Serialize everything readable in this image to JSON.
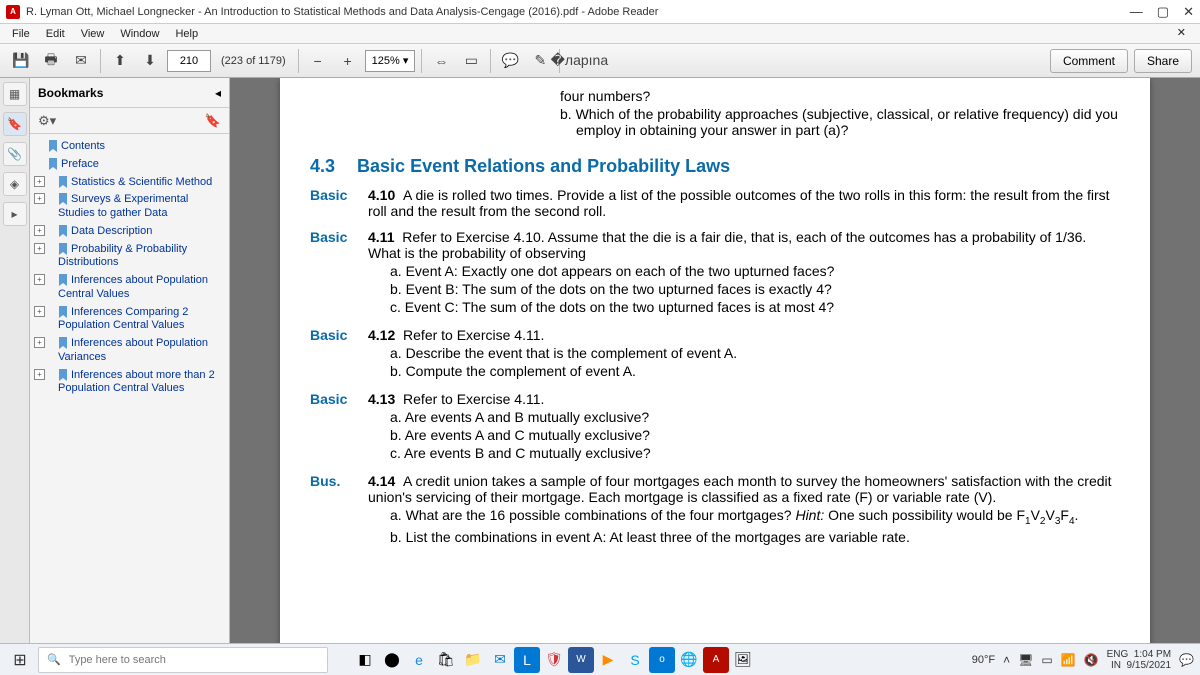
{
  "window": {
    "title": "R. Lyman Ott, Michael Longnecker - An Introduction to Statistical Methods and  Data Analysis-Cengage (2016).pdf - Adobe Reader"
  },
  "menu": {
    "file": "File",
    "edit": "Edit",
    "view": "View",
    "window": "Window",
    "help": "Help"
  },
  "toolbar": {
    "page_current": "210",
    "page_total": "(223 of 1179)",
    "zoom": "125%",
    "comment": "Comment",
    "share": "Share"
  },
  "bookmarks": {
    "title": "Bookmarks",
    "items": [
      {
        "label": "Contents",
        "top": true
      },
      {
        "label": "Preface",
        "top": true
      },
      {
        "label": "Statistics & Scientific Method"
      },
      {
        "label": "Surveys & Experimental Studies to gather Data"
      },
      {
        "label": "Data Description"
      },
      {
        "label": "Probability & Probability Distributions"
      },
      {
        "label": "Inferences about Population Central Values"
      },
      {
        "label": "Inferences Comparing 2 Population Central Values"
      },
      {
        "label": "Inferences about Population Variances"
      },
      {
        "label": "Inferences about more than 2 Population Central Values"
      }
    ]
  },
  "doc": {
    "carry_a": "four numbers?",
    "carry_b": "b.  Which of the probability approaches (subjective, classical, or relative frequency) did you employ in obtaining your answer in part (a)?",
    "section_num": "4.3",
    "section_title": "Basic Event Relations and Probability Laws",
    "ex": [
      {
        "tag": "Basic",
        "num": "4.10",
        "text": "A die is rolled two times. Provide a list of the possible outcomes of the two rolls in this form: the result from the first roll and the result from the second roll.",
        "sub": []
      },
      {
        "tag": "Basic",
        "num": "4.11",
        "text": "Refer to Exercise 4.10. Assume that the die is a fair die, that is, each of the outcomes has a probability of 1/36. What is the probability of observing",
        "sub": [
          "a.  Event A: Exactly one dot appears on each of the two upturned faces?",
          "b.  Event B: The sum of the dots on the two upturned faces is exactly 4?",
          "c.  Event C: The sum of the dots on the two upturned faces is at most 4?"
        ]
      },
      {
        "tag": "Basic",
        "num": "4.12",
        "text": "Refer to Exercise 4.11.",
        "sub": [
          "a.  Describe the event that is the complement of event A.",
          "b.  Compute the complement of event A."
        ]
      },
      {
        "tag": "Basic",
        "num": "4.13",
        "text": "Refer to Exercise 4.11.",
        "sub": [
          "a.  Are events A and B mutually exclusive?",
          "b.  Are events A and C mutually exclusive?",
          "c.  Are events B and C mutually exclusive?"
        ]
      },
      {
        "tag": "Bus.",
        "num": "4.14",
        "text": "A credit union takes a sample of four mortgages each month to survey the homeowners' satisfaction with the credit union's servicing of their mortgage. Each mortgage is classified as a fixed rate (F) or variable rate (V).",
        "sub": [
          "a.  What are the 16 possible combinations of the four mortgages? <span class='hint'>Hint:</span> One such possibility would be F<sub>1</sub>V<sub>2</sub>V<sub>3</sub>F<sub>4</sub>.",
          "b.  List the combinations in event A: At least three of the mortgages are variable rate."
        ]
      }
    ]
  },
  "taskbar": {
    "search_placeholder": "Type here to search",
    "weather": "90°F",
    "lang1": "ENG",
    "lang2": "IN",
    "time": "1:04 PM",
    "date": "9/15/2021"
  }
}
